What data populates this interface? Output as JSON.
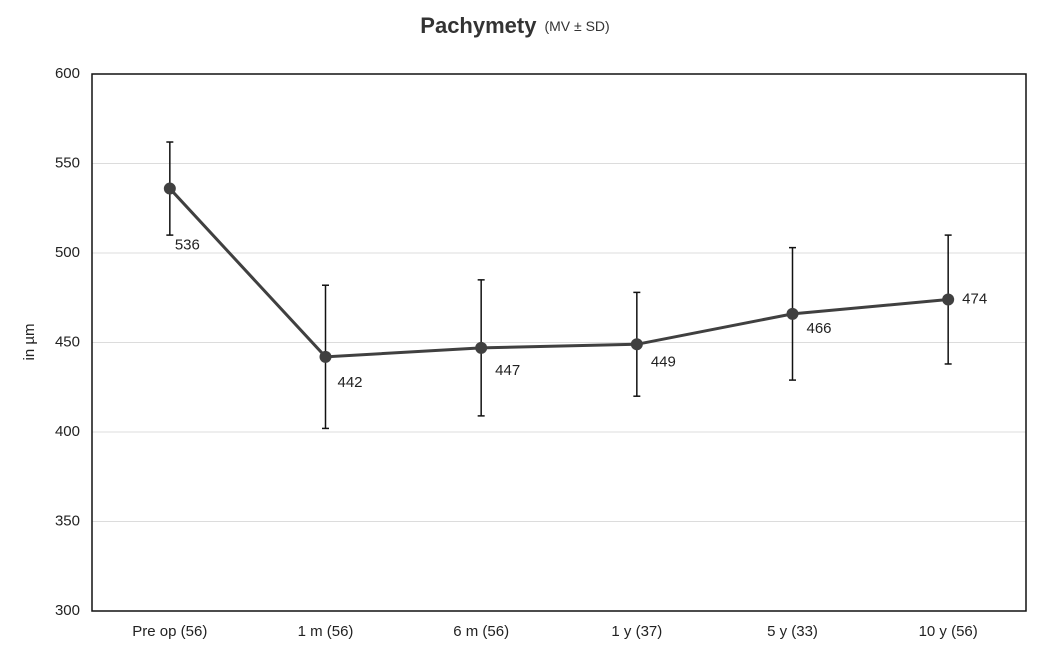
{
  "chart_data": {
    "type": "line",
    "title": "Pachymety",
    "subtitle": "(MV ± SD)",
    "y_label": "in µm",
    "categories": [
      "Pre op (56)",
      "1 m (56)",
      "6 m (56)",
      "1 y (37)",
      "5 y (33)",
      "10 y (56)"
    ],
    "values": [
      536,
      442,
      447,
      449,
      466,
      474
    ],
    "errors": [
      26,
      40,
      38,
      29,
      37,
      36
    ],
    "color": "#404040",
    "ylim": [
      300,
      600
    ],
    "yticks": [
      300,
      350,
      400,
      450,
      500,
      550,
      600
    ],
    "grid": true
  }
}
